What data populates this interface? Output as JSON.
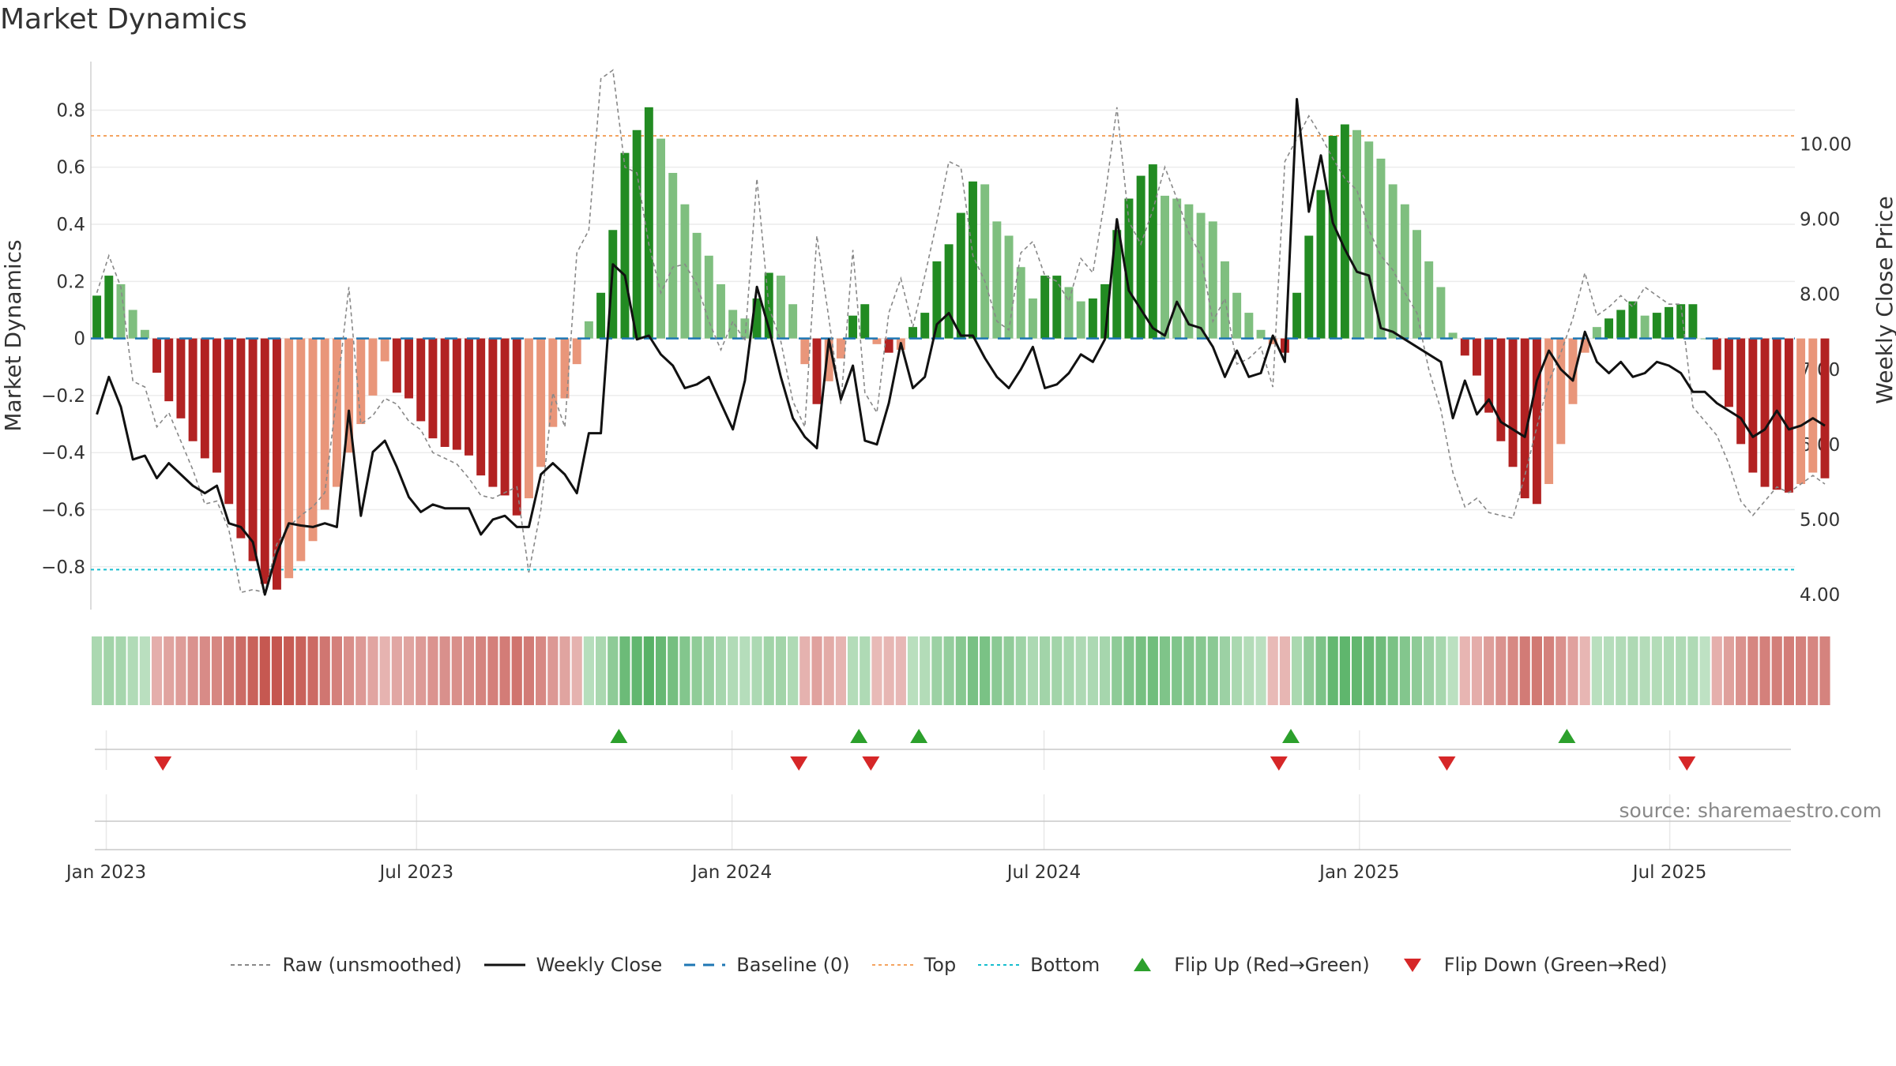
{
  "title": "Market Dynamics",
  "source_note": "source: sharemaestro.com",
  "chart_data": {
    "type": "bar",
    "title": "Market Dynamics",
    "ylabel_left": "Market Dynamics",
    "ylabel_right": "Weekly Close Price",
    "left_ylim": [
      -0.95,
      0.97
    ],
    "right_ylim": [
      3.8,
      11.1
    ],
    "left_ticks": [
      -0.8,
      -0.6,
      -0.4,
      -0.2,
      0,
      0.2,
      0.4,
      0.6,
      0.8
    ],
    "left_tick_labels": [
      "−0.8",
      "−0.6",
      "−0.4",
      "−0.2",
      "0",
      "0.2",
      "0.4",
      "0.6",
      "0.8"
    ],
    "right_ticks": [
      4,
      5,
      6,
      7,
      8,
      9,
      10
    ],
    "right_tick_labels": [
      "4.00",
      "5.00",
      "6.00",
      "7.00",
      "8.00",
      "9.00",
      "10.00"
    ],
    "x_start": "2022-12-23",
    "x_end": "2025-09-12",
    "x_ticks": [
      "2023-01-01",
      "2023-07-01",
      "2024-01-01",
      "2024-07-01",
      "2025-01-01",
      "2025-07-01"
    ],
    "x_tick_labels": [
      "Jan 2023",
      "Jul 2023",
      "Jan 2024",
      "Jul 2024",
      "Jan 2025",
      "Jul 2025"
    ],
    "first_week": "2022-12-23",
    "top_line": 0.71,
    "bottom_line": -0.81,
    "baseline": 0,
    "grid": true,
    "legend_position": "bottom-center",
    "colors": {
      "strong_green": "#228B22",
      "light_green": "#7FBF7F",
      "strong_red": "#B22222",
      "light_red": "#E9967A",
      "close_line": "#111111",
      "raw_line": "#888888",
      "baseline": "#1F77B4",
      "top": "#F4A460",
      "bottom": "#17BECF",
      "flip_up": "#2CA02C",
      "flip_down": "#D62728"
    },
    "bars": [
      0.15,
      0.22,
      0.19,
      0.1,
      0.03,
      -0.12,
      -0.22,
      -0.28,
      -0.36,
      -0.42,
      -0.47,
      -0.58,
      -0.7,
      -0.78,
      -0.86,
      -0.88,
      -0.84,
      -0.78,
      -0.71,
      -0.6,
      -0.52,
      -0.4,
      -0.3,
      -0.2,
      -0.08,
      -0.19,
      -0.21,
      -0.29,
      -0.35,
      -0.38,
      -0.39,
      -0.41,
      -0.48,
      -0.52,
      -0.55,
      -0.62,
      -0.56,
      -0.45,
      -0.31,
      -0.21,
      -0.09,
      0.06,
      0.16,
      0.38,
      0.65,
      0.73,
      0.81,
      0.7,
      0.58,
      0.47,
      0.37,
      0.29,
      0.19,
      0.1,
      0.07,
      0.14,
      0.23,
      0.22,
      0.12,
      -0.09,
      -0.23,
      -0.15,
      -0.07,
      0.08,
      0.12,
      -0.02,
      -0.05,
      -0.04,
      0.04,
      0.09,
      0.27,
      0.33,
      0.44,
      0.55,
      0.54,
      0.41,
      0.36,
      0.25,
      0.14,
      0.22,
      0.22,
      0.18,
      0.13,
      0.14,
      0.19,
      0.38,
      0.49,
      0.57,
      0.61,
      0.5,
      0.49,
      0.47,
      0.44,
      0.41,
      0.27,
      0.16,
      0.09,
      0.03,
      -0.02,
      -0.05,
      0.16,
      0.36,
      0.52,
      0.71,
      0.75,
      0.73,
      0.69,
      0.63,
      0.54,
      0.47,
      0.38,
      0.27,
      0.18,
      0.02,
      -0.06,
      -0.13,
      -0.26,
      -0.36,
      -0.45,
      -0.56,
      -0.58,
      -0.51,
      -0.37,
      -0.23,
      -0.05,
      0.04,
      0.07,
      0.1,
      0.13,
      0.08,
      0.09,
      0.11,
      0.12,
      0.12,
      0.0,
      -0.11,
      -0.24,
      -0.37,
      -0.47,
      -0.52,
      -0.53,
      -0.54,
      -0.51,
      -0.47,
      -0.49
    ],
    "close": [
      6.4,
      6.9,
      6.5,
      5.8,
      5.85,
      5.55,
      5.75,
      5.6,
      5.45,
      5.35,
      5.45,
      4.95,
      4.9,
      4.7,
      4.0,
      4.55,
      4.95,
      4.92,
      4.9,
      4.95,
      4.9,
      6.45,
      5.05,
      5.9,
      6.05,
      5.7,
      5.3,
      5.1,
      5.2,
      5.15,
      5.15,
      5.15,
      4.8,
      5.0,
      5.05,
      4.9,
      4.9,
      5.6,
      5.75,
      5.6,
      5.35,
      6.15,
      6.15,
      8.4,
      8.25,
      7.4,
      7.45,
      7.2,
      7.05,
      6.75,
      6.8,
      6.9,
      6.55,
      6.2,
      6.85,
      8.1,
      7.55,
      6.9,
      6.35,
      6.1,
      5.95,
      7.4,
      6.6,
      7.05,
      6.05,
      6.0,
      6.55,
      7.35,
      6.75,
      6.9,
      7.6,
      7.75,
      7.45,
      7.45,
      7.15,
      6.9,
      6.75,
      7.0,
      7.3,
      6.75,
      6.8,
      6.95,
      7.2,
      7.1,
      7.4,
      9.0,
      8.05,
      7.8,
      7.55,
      7.45,
      7.9,
      7.6,
      7.55,
      7.3,
      6.9,
      7.25,
      6.9,
      6.95,
      7.45,
      7.1,
      10.6,
      9.1,
      9.85,
      8.95,
      8.6,
      8.3,
      8.25,
      7.55,
      7.5,
      7.4,
      7.3,
      7.2,
      7.1,
      6.35,
      6.85,
      6.4,
      6.6,
      6.3,
      6.2,
      6.1,
      6.85,
      7.25,
      7.0,
      6.85,
      7.5,
      7.1,
      6.95,
      7.1,
      6.9,
      6.95,
      7.1,
      7.05,
      6.95,
      6.7,
      6.7,
      6.55,
      6.45,
      6.35,
      6.1,
      6.2,
      6.45,
      6.2,
      6.25,
      6.35,
      6.25
    ],
    "raw": [
      0.16,
      0.29,
      0.18,
      -0.15,
      -0.17,
      -0.31,
      -0.26,
      -0.36,
      -0.46,
      -0.58,
      -0.57,
      -0.67,
      -0.89,
      -0.88,
      -0.89,
      -0.72,
      -0.66,
      -0.62,
      -0.59,
      -0.54,
      -0.2,
      0.18,
      -0.3,
      -0.27,
      -0.21,
      -0.23,
      -0.29,
      -0.32,
      -0.4,
      -0.42,
      -0.44,
      -0.49,
      -0.55,
      -0.56,
      -0.54,
      -0.52,
      -0.82,
      -0.6,
      -0.19,
      -0.31,
      0.3,
      0.38,
      0.91,
      0.94,
      0.6,
      0.58,
      0.33,
      0.16,
      0.25,
      0.26,
      0.19,
      0.06,
      -0.04,
      0.06,
      -0.01,
      0.56,
      0.11,
      -0.01,
      -0.22,
      -0.31,
      0.36,
      0.07,
      -0.23,
      0.31,
      -0.19,
      -0.26,
      0.09,
      0.21,
      0.04,
      0.22,
      0.41,
      0.62,
      0.6,
      0.29,
      0.2,
      0.06,
      0.03,
      0.3,
      0.34,
      0.22,
      0.2,
      0.13,
      0.28,
      0.23,
      0.49,
      0.81,
      0.41,
      0.33,
      0.45,
      0.6,
      0.49,
      0.37,
      0.29,
      0.06,
      0.14,
      -0.09,
      -0.07,
      -0.03,
      -0.17,
      0.62,
      0.7,
      0.78,
      0.71,
      0.63,
      0.56,
      0.52,
      0.38,
      0.29,
      0.24,
      0.16,
      0.09,
      -0.11,
      -0.25,
      -0.47,
      -0.59,
      -0.56,
      -0.61,
      -0.62,
      -0.63,
      -0.48,
      -0.31,
      -0.15,
      -0.05,
      0.07,
      0.23,
      0.08,
      0.11,
      0.15,
      0.11,
      0.18,
      0.15,
      0.12,
      0.12,
      -0.24,
      -0.29,
      -0.34,
      -0.44,
      -0.57,
      -0.62,
      -0.57,
      -0.52,
      -0.54,
      -0.51,
      -0.48,
      -0.51
    ],
    "flip_up": [
      "2023-10-27",
      "2024-03-15",
      "2024-04-19",
      "2024-11-22",
      "2025-05-02"
    ],
    "flip_down": [
      "2023-02-03",
      "2024-02-09",
      "2024-03-22",
      "2024-11-15",
      "2025-02-21",
      "2025-07-11"
    ]
  },
  "legend": {
    "raw": "Raw (unsmoothed)",
    "close": "Weekly Close",
    "baseline": "Baseline (0)",
    "top": "Top",
    "bottom": "Bottom",
    "flip_up": "Flip Up (Red→Green)",
    "flip_down": "Flip Down (Green→Red)"
  }
}
